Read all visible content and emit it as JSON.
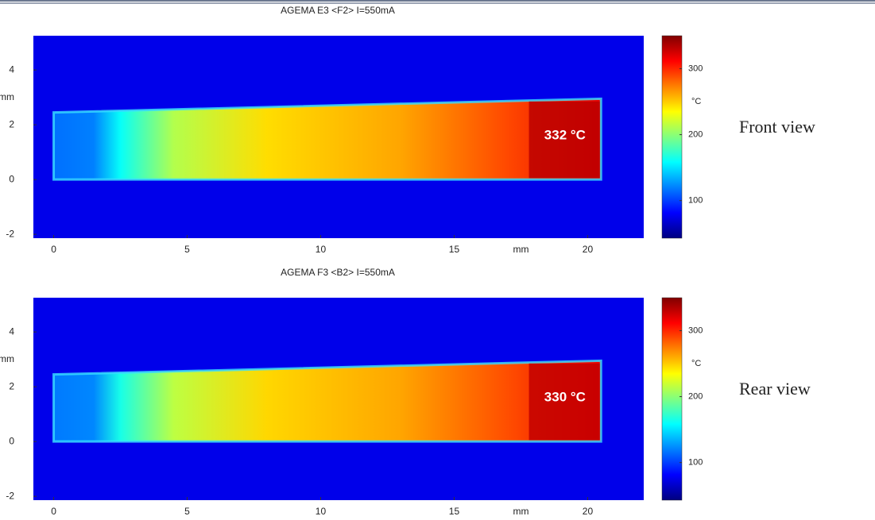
{
  "chart_data": [
    {
      "type": "thermal",
      "title": "AGEMA E3 <F2> I=550mA",
      "caption": "Front view",
      "xlabel": "mm",
      "ylabel": "mm",
      "xlim": [
        -0.76,
        22.1
      ],
      "ylim": [
        -2.14,
        5.25
      ],
      "xticks": [
        0,
        5,
        10,
        15,
        20
      ],
      "yticks": [
        -2,
        0,
        2,
        4
      ],
      "clim": [
        43,
        350
      ],
      "cticks": [
        100,
        200,
        300
      ],
      "clabel": "°C",
      "colormap": "jet",
      "ambient": 75,
      "profile": {
        "x": [
          0,
          1.5,
          2.5,
          4.5,
          8,
          13,
          17,
          20.5
        ],
        "values": [
          115,
          120,
          160,
          212,
          245,
          262,
          290,
          318
        ]
      },
      "hotspot": {
        "value": 332,
        "label": "332 °C"
      }
    },
    {
      "type": "thermal",
      "title": "AGEMA F3 <B2> I=550mA",
      "caption": "Rear view",
      "xlabel": "mm",
      "ylabel": "mm",
      "xlim": [
        -0.76,
        22.1
      ],
      "ylim": [
        -2.14,
        5.25
      ],
      "xticks": [
        0,
        5,
        10,
        15,
        20
      ],
      "yticks": [
        -2,
        0,
        2,
        4
      ],
      "clim": [
        43,
        350
      ],
      "cticks": [
        100,
        200,
        300
      ],
      "clabel": "°C",
      "colormap": "jet",
      "ambient": 75,
      "profile": {
        "x": [
          0,
          1.5,
          2.5,
          4.5,
          8,
          13,
          17,
          20.5
        ],
        "values": [
          118,
          122,
          165,
          215,
          247,
          262,
          288,
          316
        ]
      },
      "hotspot": {
        "value": 330,
        "label": "330 °C"
      }
    }
  ]
}
